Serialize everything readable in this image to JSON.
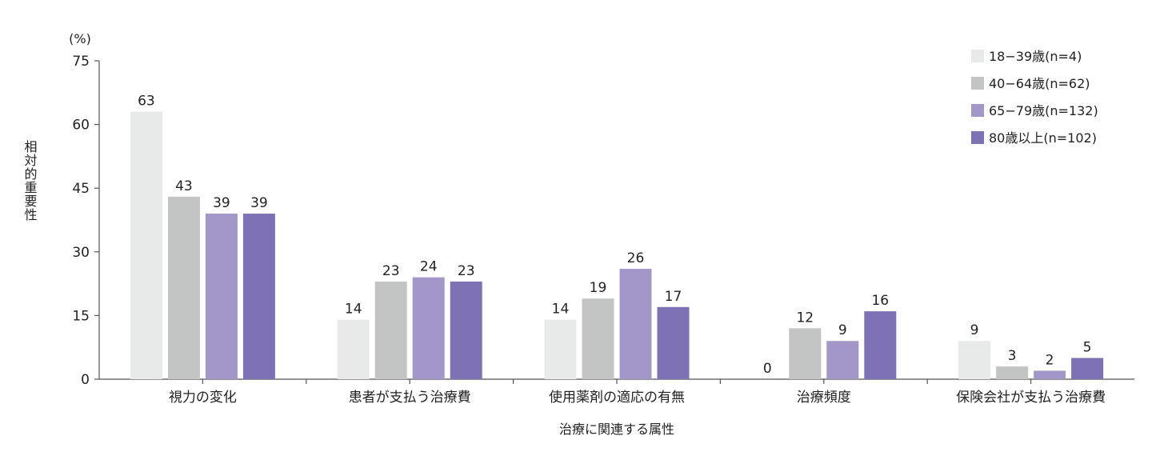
{
  "chart_data": {
    "type": "bar",
    "unit": "(%)",
    "ylabel": "相対的重要性",
    "xlabel": "治療に関連する属性",
    "ylim": [
      0,
      75
    ],
    "yticks": [
      0,
      15,
      30,
      45,
      60,
      75
    ],
    "grid": false,
    "legend_position": "top-right",
    "categories": [
      "視力の変化",
      "患者が支払う治療費",
      "使用薬剤の適応の有無",
      "治療頻度",
      "保険会社が支払う治療費"
    ],
    "series": [
      {
        "name": "18−39歳(n=4)",
        "color": "#e8e9e9",
        "values": [
          63,
          14,
          14,
          0,
          9
        ]
      },
      {
        "name": "40−64歳(n=62)",
        "color": "#c3c4c4",
        "values": [
          43,
          23,
          19,
          12,
          3
        ]
      },
      {
        "name": "65−79歳(n=132)",
        "color": "#a397c9",
        "values": [
          39,
          24,
          26,
          9,
          2
        ]
      },
      {
        "name": "80歳以上(n=102)",
        "color": "#7f72b4",
        "values": [
          39,
          23,
          17,
          16,
          5
        ]
      }
    ]
  }
}
